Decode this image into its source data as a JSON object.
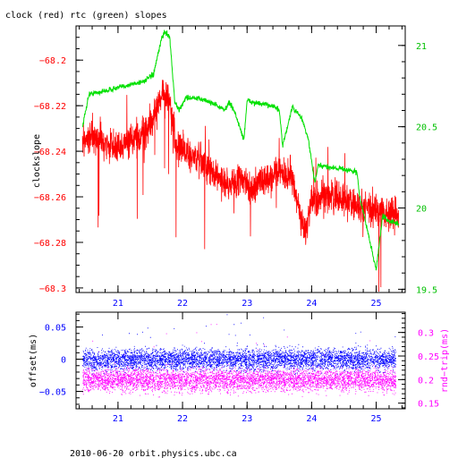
{
  "title": "clock (red) rtc (green) slopes",
  "footer": "2010-06-20 orbit.physics.ubc.ca",
  "colors": {
    "red": "#ff0000",
    "green": "#00e000",
    "blue": "#0000ff",
    "magenta": "#ff00ff",
    "axis": "#000000"
  },
  "chart_data": [
    {
      "type": "line",
      "title": "clock (red) rtc (green) slopes",
      "xlabel": "",
      "ylabel": "clockslope",
      "y2label": "",
      "xlim": [
        20.35,
        25.45
      ],
      "ylim": [
        -68.302,
        -68.185
      ],
      "y2lim": [
        19.48,
        21.12
      ],
      "xticks": [
        21,
        22,
        23,
        24,
        25
      ],
      "yticks": [
        -68.3,
        -68.28,
        -68.26,
        -68.24,
        -68.22,
        -68.2
      ],
      "y2ticks": [
        19.5,
        20,
        20.5,
        21
      ],
      "grid": false,
      "series": [
        {
          "name": "clock",
          "color": "#ff0000",
          "axis": "left",
          "x": [
            20.45,
            20.6,
            20.8,
            21.0,
            21.2,
            21.4,
            21.55,
            21.7,
            21.8,
            21.9,
            22.1,
            22.3,
            22.5,
            22.7,
            22.9,
            23.1,
            23.3,
            23.5,
            23.7,
            23.8,
            23.9,
            24.0,
            24.2,
            24.4,
            24.6,
            24.8,
            25.0,
            25.2,
            25.35
          ],
          "y": [
            -68.236,
            -68.233,
            -68.237,
            -68.238,
            -68.235,
            -68.232,
            -68.226,
            -68.214,
            -68.217,
            -68.238,
            -68.242,
            -68.245,
            -68.25,
            -68.255,
            -68.252,
            -68.256,
            -68.253,
            -68.249,
            -68.252,
            -68.265,
            -68.275,
            -68.262,
            -68.26,
            -68.26,
            -68.262,
            -68.265,
            -68.265,
            -68.268,
            -68.268
          ]
        },
        {
          "name": "rtc",
          "color": "#00e000",
          "axis": "right",
          "x": [
            20.45,
            20.55,
            20.8,
            21.0,
            21.2,
            21.4,
            21.55,
            21.68,
            21.72,
            21.8,
            21.88,
            21.95,
            22.05,
            22.3,
            22.5,
            22.65,
            22.72,
            22.8,
            22.95,
            23.0,
            23.2,
            23.4,
            23.5,
            23.55,
            23.7,
            23.85,
            23.95,
            24.05,
            24.1,
            24.3,
            24.5,
            24.7,
            24.75,
            24.9,
            25.0,
            25.1,
            25.2,
            25.35
          ],
          "y": [
            20.5,
            20.7,
            20.72,
            20.74,
            20.76,
            20.78,
            20.82,
            21.05,
            21.08,
            21.06,
            20.65,
            20.6,
            20.68,
            20.67,
            20.64,
            20.6,
            20.65,
            20.6,
            20.42,
            20.66,
            20.64,
            20.63,
            20.6,
            20.38,
            20.62,
            20.55,
            20.42,
            20.15,
            20.26,
            20.25,
            20.24,
            20.22,
            20.06,
            19.8,
            19.62,
            19.95,
            19.92,
            19.9
          ]
        }
      ]
    },
    {
      "type": "scatter",
      "xlabel": "",
      "ylabel": "offset(ms)",
      "y2label": "rnd−trip(ms)",
      "xlim": [
        20.35,
        25.45
      ],
      "ylim": [
        -0.077,
        0.073
      ],
      "y2lim": [
        0.138,
        0.343
      ],
      "xticks": [
        21,
        22,
        23,
        24,
        25
      ],
      "yticks": [
        -0.05,
        0,
        0.05
      ],
      "ytick_labels": [
        "−0.05",
        "0",
        "0.05"
      ],
      "y2ticks": [
        0.15,
        0.2,
        0.25,
        0.3
      ],
      "grid": false,
      "series": [
        {
          "name": "offset",
          "color": "#0000ff",
          "axis": "left",
          "x_range": [
            20.45,
            25.3
          ],
          "center": 0,
          "spread": 0.008
        },
        {
          "name": "rnd-trip",
          "color": "#ff00ff",
          "axis": "right",
          "x_range": [
            20.45,
            25.3
          ],
          "center": 0.2,
          "spread": 0.012
        }
      ]
    }
  ]
}
